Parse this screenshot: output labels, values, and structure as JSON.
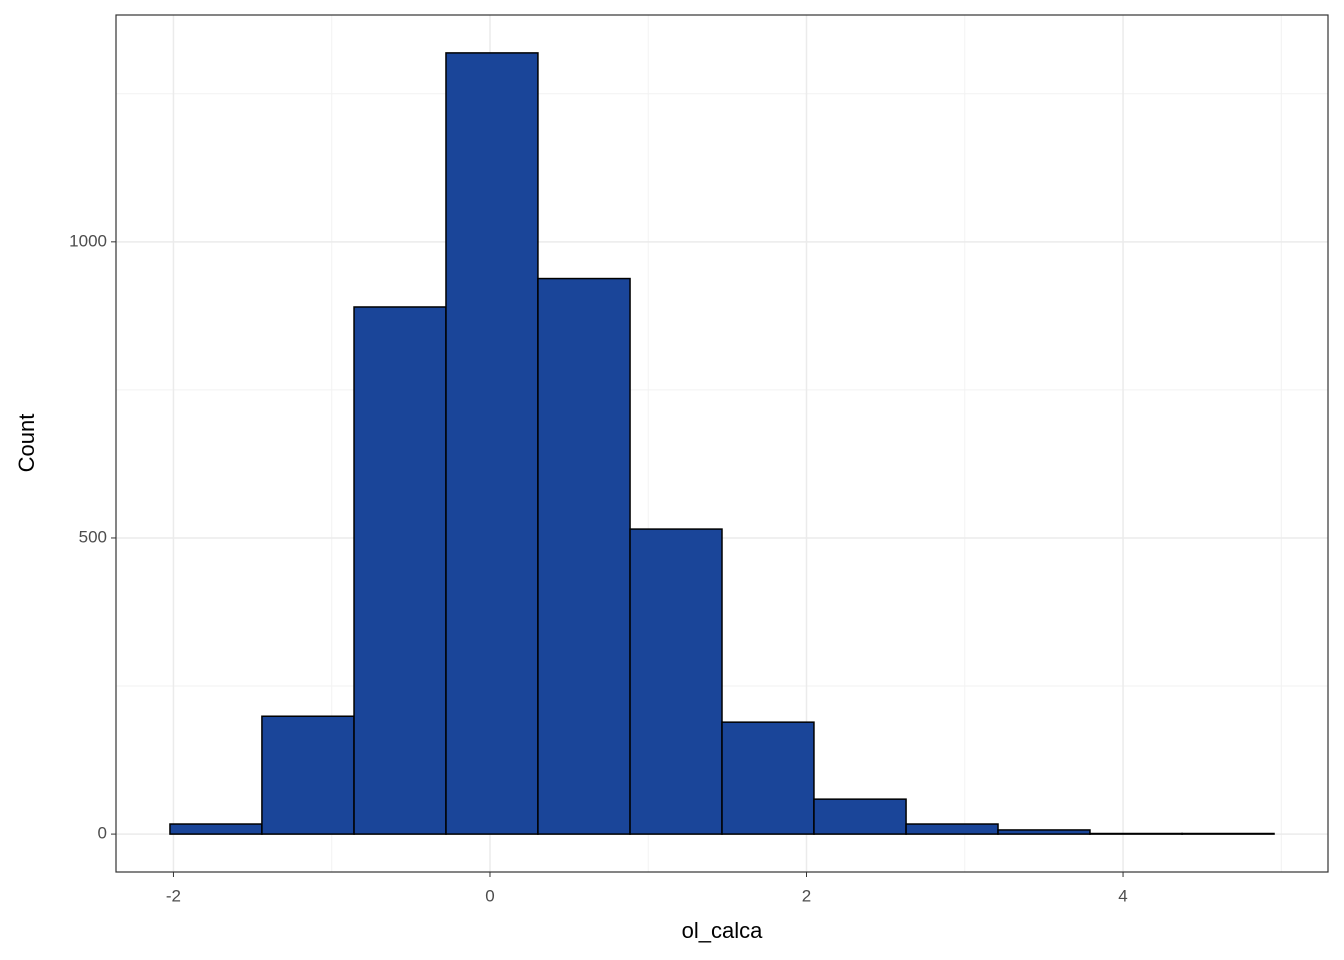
{
  "chart_data": {
    "type": "histogram",
    "x_label": "ol_calca",
    "y_label": "Count",
    "bins": [
      -2.022,
      -1.441,
      -0.859,
      -0.278,
      0.303,
      0.885,
      1.466,
      2.047,
      2.629,
      3.21,
      3.791,
      4.373,
      4.954
    ],
    "values": [
      17,
      199,
      890,
      1319,
      938,
      515,
      189,
      59,
      17,
      7,
      1,
      1
    ],
    "color": "#1a4599",
    "xlim": [
      -2.363,
      5.295
    ],
    "ylim": [
      -64,
      1383
    ],
    "xticks": [
      -2,
      0,
      2,
      4
    ],
    "yticks": [
      0,
      500,
      1000
    ],
    "grid": true
  }
}
